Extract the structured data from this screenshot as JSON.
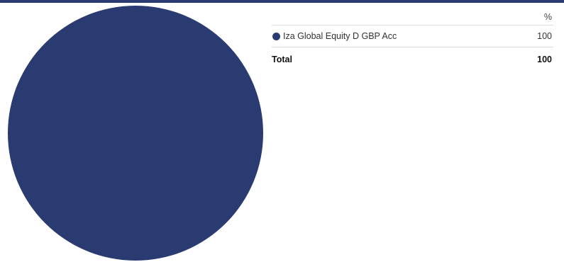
{
  "colors": {
    "accent": "#293b70",
    "divider": "#dcdcdc"
  },
  "table": {
    "unit_header": "%",
    "rows": [
      {
        "name": "Iza Global Equity D GBP Acc",
        "value": "100",
        "color": "#293b70"
      }
    ],
    "total": {
      "label": "Total",
      "value": "100"
    }
  },
  "chart_data": {
    "type": "pie",
    "categories": [
      "Iza Global Equity D GBP Acc"
    ],
    "values": [
      100
    ],
    "colors": [
      "#293b70"
    ],
    "title": ""
  }
}
